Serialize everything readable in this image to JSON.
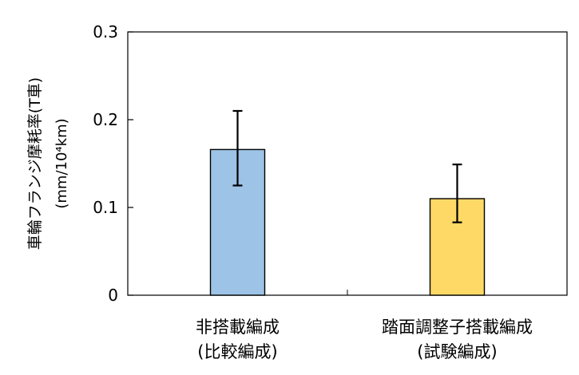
{
  "chart_data": {
    "type": "bar",
    "title": "",
    "ylabel": "車輪フランジ摩耗率(T車)",
    "ylabel_unit": "(mm/10⁴km)",
    "ylim": [
      0,
      0.3
    ],
    "yticks": [
      {
        "value": 0,
        "label": "0"
      },
      {
        "value": 0.1,
        "label": "0.1"
      },
      {
        "value": 0.2,
        "label": "0.2"
      },
      {
        "value": 0.3,
        "label": "0.3"
      }
    ],
    "grid": false,
    "categories": [
      {
        "line1": "非搭載編成",
        "line2": "(比較編成)"
      },
      {
        "line1": "踏面調整子搭載編成",
        "line2": "(試験編成)"
      }
    ],
    "values": [
      0.166,
      0.11
    ],
    "error_low": [
      0.125,
      0.083
    ],
    "error_high": [
      0.21,
      0.149
    ],
    "colors": [
      "#9dc3e6",
      "#ffd966"
    ]
  }
}
